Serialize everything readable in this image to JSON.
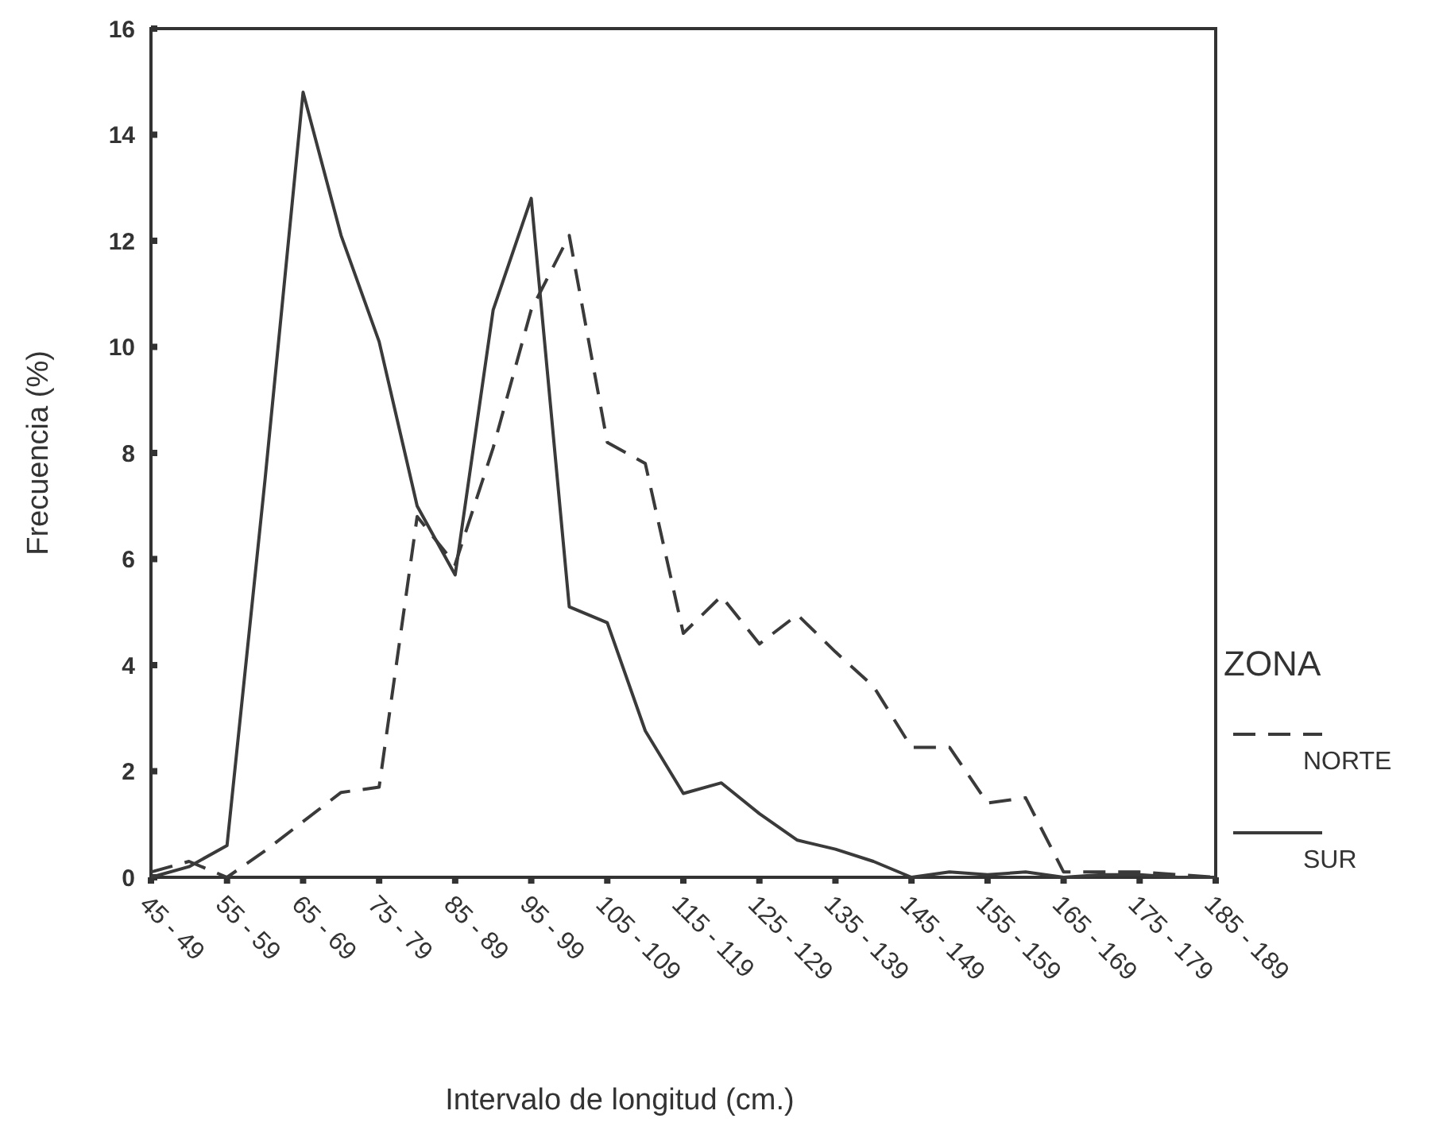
{
  "chart_data": {
    "type": "line",
    "xlabel": "Intervalo de longitud (cm.)",
    "ylabel": "Frecuencia (%)",
    "legend_title": "ZONA",
    "categories": [
      "45 - 49",
      null,
      "55 - 59",
      null,
      "65 - 69",
      null,
      "75 - 79",
      null,
      "85 - 89",
      null,
      "95 - 99",
      null,
      "105 - 109",
      null,
      "115 - 119",
      null,
      "125 - 129",
      null,
      "135 - 139",
      null,
      "145 - 149",
      null,
      "155 - 159",
      null,
      "165 - 169",
      null,
      "175 - 179",
      null,
      "185 - 189"
    ],
    "series": [
      {
        "name": "NORTE",
        "color": "#3a3a3a",
        "line_style": "dashed",
        "values": [
          0.1,
          0.3,
          0,
          0.5,
          1.05,
          1.6,
          1.7,
          6.8,
          5.9,
          8.1,
          10.7,
          12.1,
          8.2,
          7.8,
          4.6,
          5.3,
          4.4,
          4.95,
          4.25,
          3.6,
          2.45,
          2.45,
          1.4,
          1.5,
          0.1,
          0.1,
          0.1,
          0.05,
          0
        ]
      },
      {
        "name": "SUR",
        "color": "#3a3a3a",
        "line_style": "solid",
        "values": [
          0,
          0.2,
          0.6,
          7.5,
          14.8,
          12.1,
          10.1,
          7.0,
          5.7,
          10.7,
          12.8,
          5.1,
          4.8,
          2.76,
          1.58,
          1.78,
          1.2,
          0.7,
          0.53,
          0.3,
          0,
          0.1,
          0.05,
          0.1,
          0,
          0.05,
          0.05,
          0,
          0
        ]
      }
    ],
    "ylim": [
      0,
      16
    ],
    "yticks": [
      0,
      2,
      4,
      6,
      8,
      10,
      12,
      14,
      16
    ],
    "grid": false,
    "legend": "right",
    "marker": "none"
  }
}
